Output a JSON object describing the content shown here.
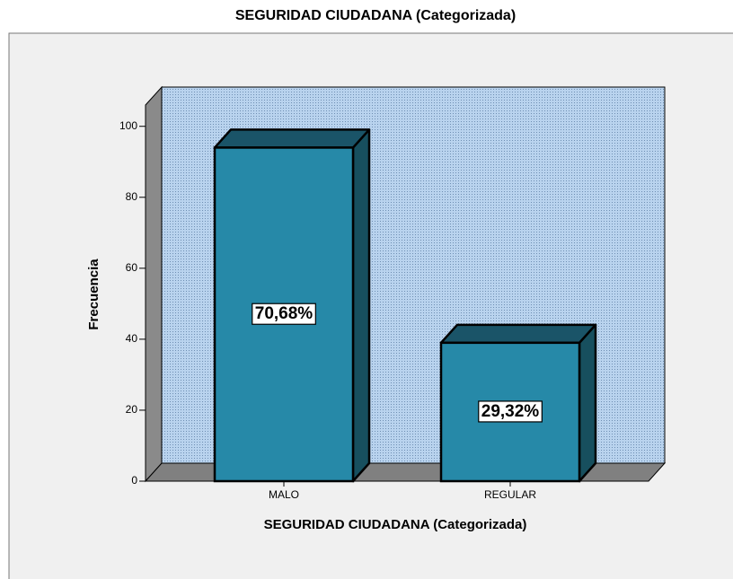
{
  "chart_data": {
    "type": "bar3d",
    "title": "SEGURIDAD CIUDADANA (Categorizada)",
    "x_label": "SEGURIDAD CIUDADANA (Categorizada)",
    "y_label": "Frecuencia",
    "categories": [
      "MALO",
      "REGULAR"
    ],
    "values": [
      94,
      39
    ],
    "bar_labels": [
      "70,68%",
      "29,32%"
    ],
    "color": "#2689a8",
    "ylim": [
      0,
      106
    ],
    "yticks": [
      0,
      20,
      40,
      60,
      80,
      100
    ]
  }
}
